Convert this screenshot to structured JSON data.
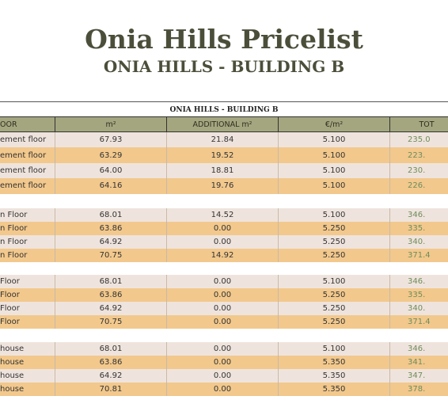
{
  "header": {
    "title": "Onia Hills Pricelist",
    "subtitle": "ONIA HILLS - BUILDING B"
  },
  "table": {
    "caption": "ONIA HILLS - BUILDING B",
    "columns": [
      "OOR",
      "m²",
      "ADDITIONAL m²",
      "€/m²",
      "TOT"
    ],
    "groups": [
      {
        "rows": [
          [
            "ement floor",
            "67.93",
            "21.84",
            "5.100",
            "235.0"
          ],
          [
            "ement floor",
            "63.29",
            "19.52",
            "5.100",
            "223."
          ],
          [
            "ement floor",
            "64.00",
            "18.81",
            "5.100",
            "230."
          ],
          [
            "ement floor",
            "64.16",
            "19.76",
            "5.100",
            "226."
          ]
        ]
      },
      {
        "rows": [
          [
            "n Floor",
            "68.01",
            "14.52",
            "5.100",
            "346."
          ],
          [
            "n Floor",
            "63.86",
            "0.00",
            "5.250",
            "335."
          ],
          [
            "n Floor",
            "64.92",
            "0.00",
            "5.250",
            "340."
          ],
          [
            "n Floor",
            "70.75",
            "14.92",
            "5.250",
            "371.4"
          ]
        ]
      },
      {
        "rows": [
          [
            "Floor",
            "68.01",
            "0.00",
            "5.100",
            "346."
          ],
          [
            "Floor",
            "63.86",
            "0.00",
            "5.250",
            "335."
          ],
          [
            "Floor",
            "64.92",
            "0.00",
            "5.250",
            "340."
          ],
          [
            "Floor",
            "70.75",
            "0.00",
            "5.250",
            "371.4"
          ]
        ]
      },
      {
        "rows": [
          [
            "house",
            "68.01",
            "0.00",
            "5.100",
            "346."
          ],
          [
            "house",
            "63.86",
            "0.00",
            "5.350",
            "341."
          ],
          [
            "house",
            "64.92",
            "0.00",
            "5.350",
            "347."
          ],
          [
            "house",
            "70.81",
            "0.00",
            "5.350",
            "378."
          ]
        ]
      }
    ]
  }
}
